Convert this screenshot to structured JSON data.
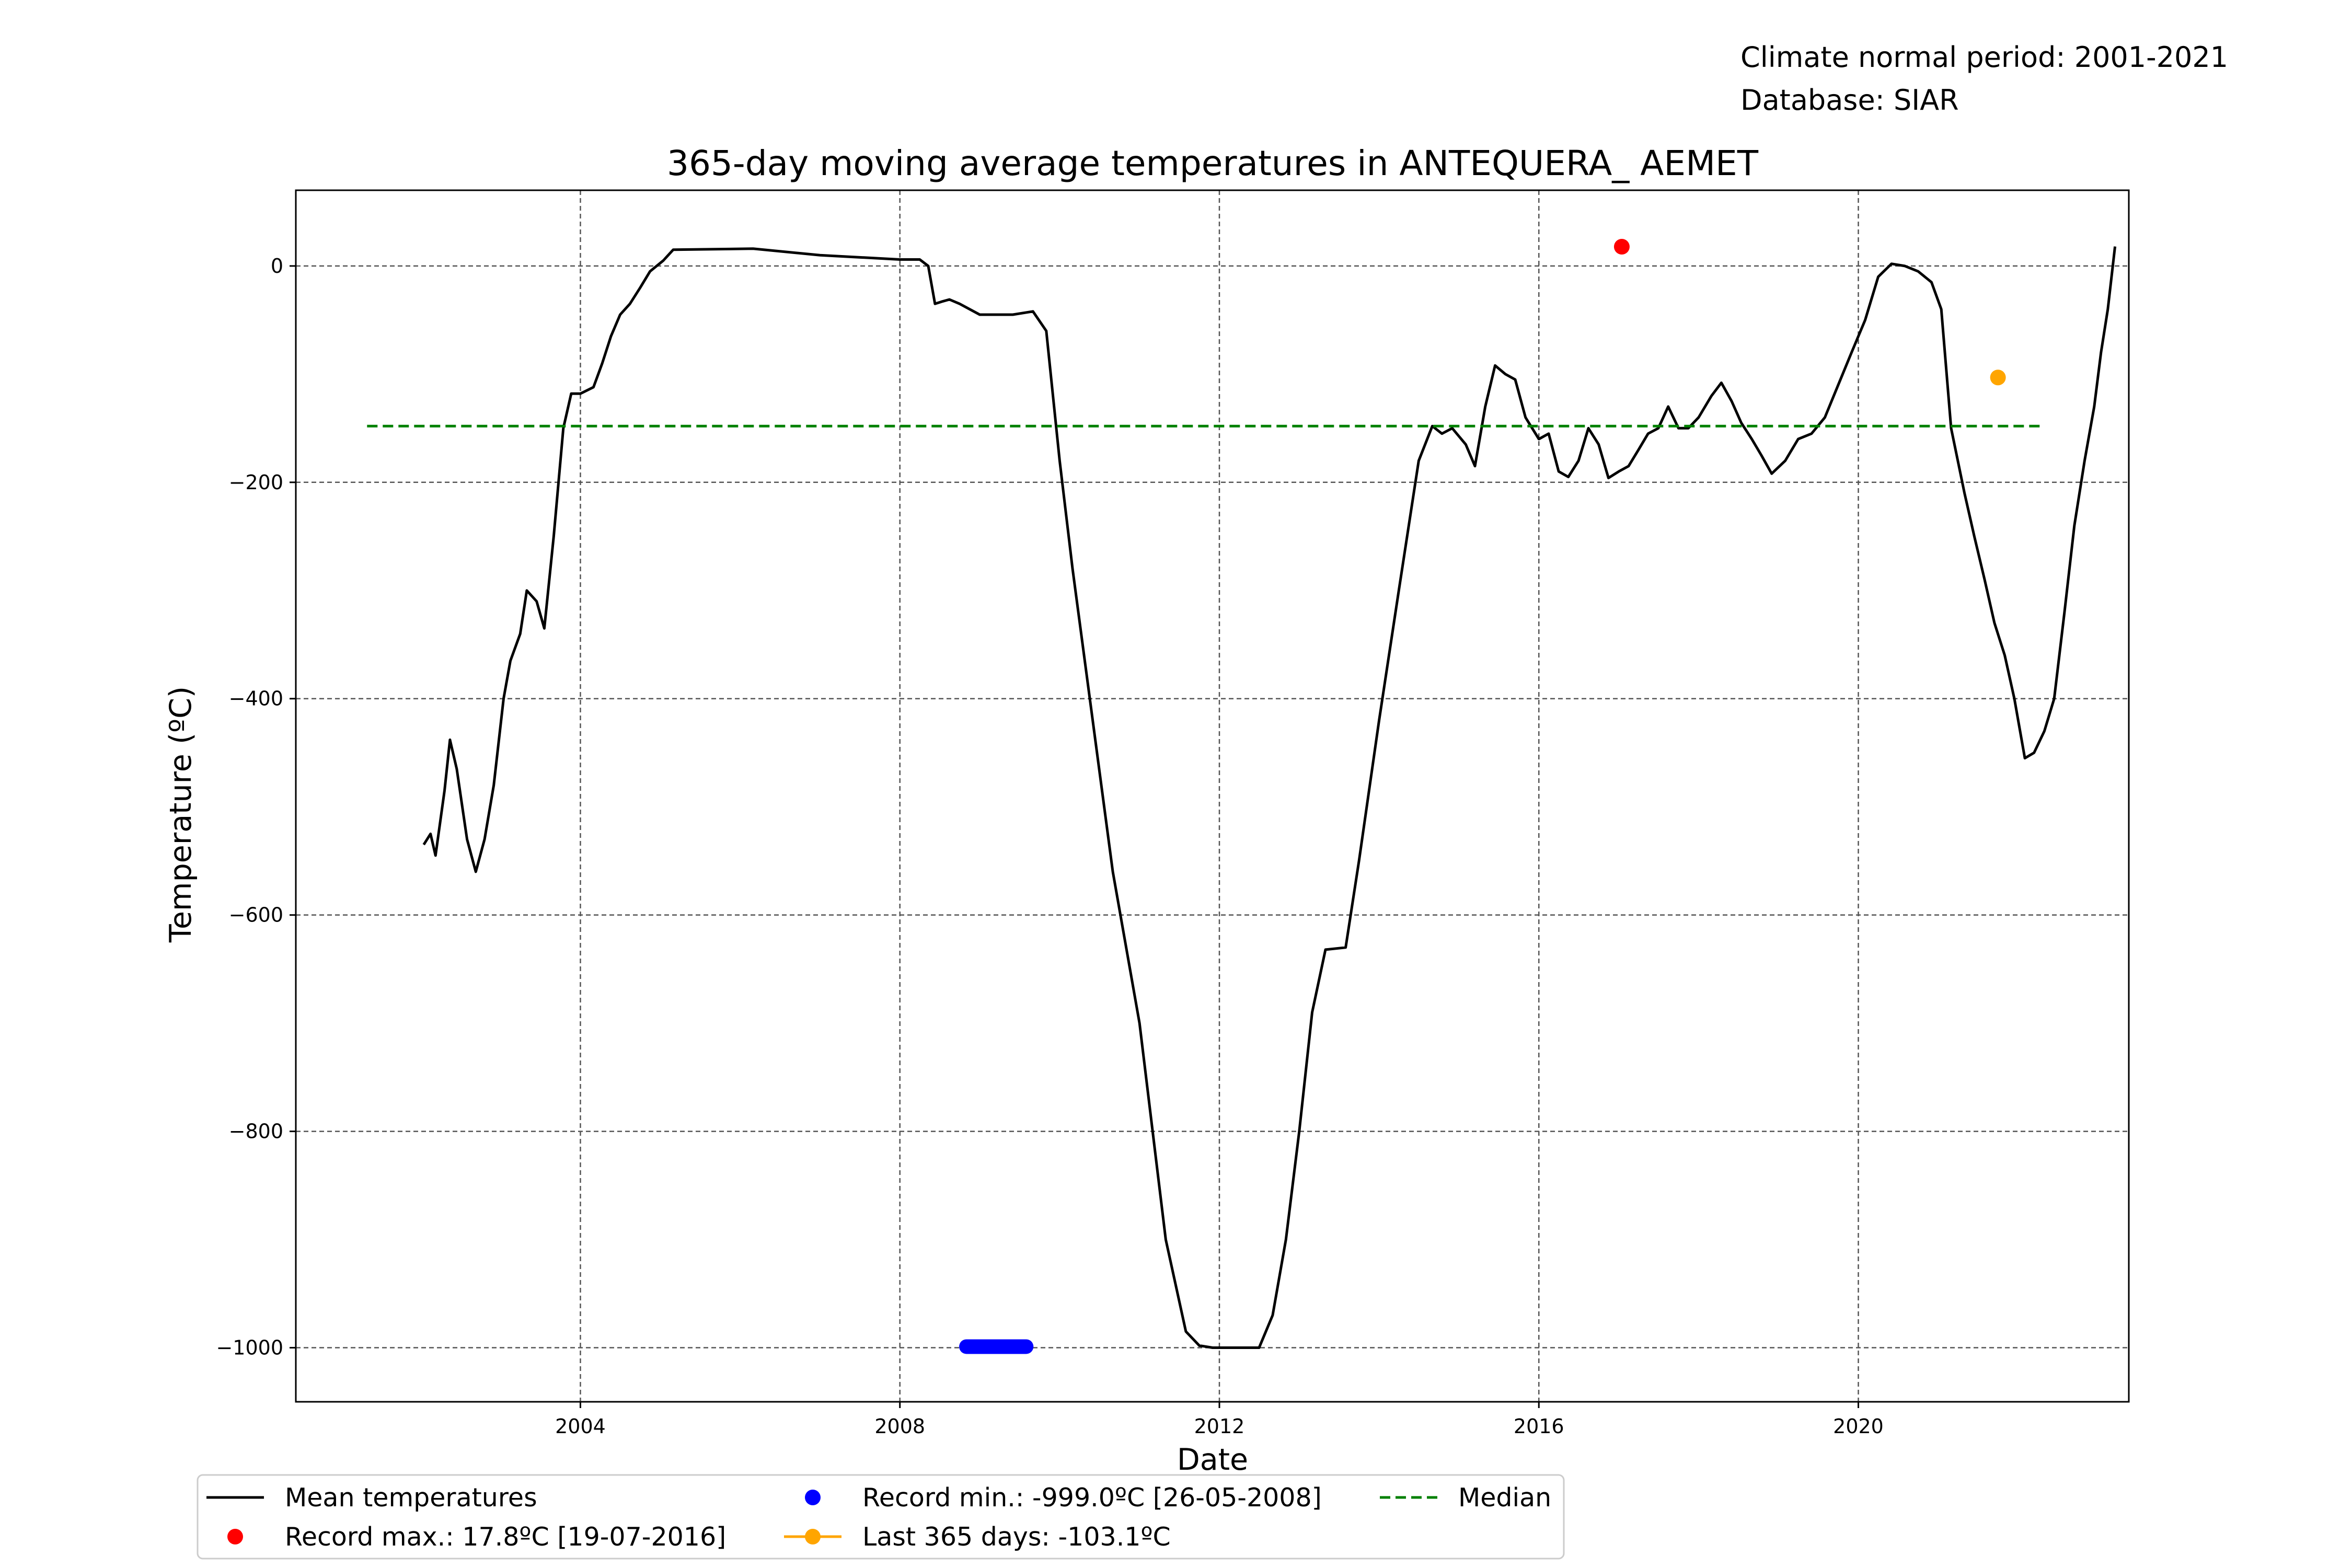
{
  "header_notes": {
    "period": "Climate normal period: 2001-2021",
    "database": "Database: SIAR"
  },
  "chart_data": {
    "type": "line",
    "title": "365-day moving average temperatures in ANTEQUERA_ AEMET",
    "xlabel": "Date",
    "ylabel": "Temperature (ºC)",
    "xlim": [
      "2000-06-09",
      "2023-05-22"
    ],
    "ylim": [
      -1050,
      70
    ],
    "x_ticks": [
      "2004",
      "2008",
      "2012",
      "2016",
      "2020"
    ],
    "y_ticks": [
      {
        "value": 0,
        "label": "0"
      },
      {
        "value": -200,
        "label": "−200"
      },
      {
        "value": -400,
        "label": "−400"
      },
      {
        "value": -600,
        "label": "−600"
      },
      {
        "value": -800,
        "label": "−800"
      },
      {
        "value": -1000,
        "label": "−1000"
      }
    ],
    "grid": true,
    "series": [
      {
        "name": "Mean temperatures",
        "color": "#000000",
        "style": "solid",
        "points": [
          [
            "2002-01-15",
            -535
          ],
          [
            "2002-02-15",
            -525
          ],
          [
            "2002-03-10",
            -545
          ],
          [
            "2002-04-20",
            -485
          ],
          [
            "2002-05-15",
            -438
          ],
          [
            "2002-06-15",
            -465
          ],
          [
            "2002-08-01",
            -530
          ],
          [
            "2002-09-10",
            -560
          ],
          [
            "2002-10-20",
            -530
          ],
          [
            "2002-12-01",
            -480
          ],
          [
            "2003-01-15",
            -400
          ],
          [
            "2003-02-15",
            -365
          ],
          [
            "2003-04-01",
            -340
          ],
          [
            "2003-05-01",
            -300
          ],
          [
            "2003-06-15",
            -310
          ],
          [
            "2003-07-20",
            -335
          ],
          [
            "2003-09-01",
            -250
          ],
          [
            "2003-10-15",
            -150
          ],
          [
            "2003-11-20",
            -118
          ],
          [
            "2004-01-01",
            -118
          ],
          [
            "2004-03-01",
            -112
          ],
          [
            "2004-04-10",
            -90
          ],
          [
            "2004-05-20",
            -65
          ],
          [
            "2004-07-01",
            -45
          ],
          [
            "2004-08-15",
            -35
          ],
          [
            "2004-10-01",
            -20
          ],
          [
            "2004-11-15",
            -5
          ],
          [
            "2005-01-15",
            5
          ],
          [
            "2005-03-01",
            15
          ],
          [
            "2006-03-01",
            16
          ],
          [
            "2007-01-01",
            10
          ],
          [
            "2008-01-01",
            6
          ],
          [
            "2008-04-01",
            6
          ],
          [
            "2008-05-10",
            0
          ],
          [
            "2008-06-10",
            -35
          ],
          [
            "2008-07-10",
            -33
          ],
          [
            "2008-08-15",
            -31
          ],
          [
            "2008-10-01",
            -35
          ],
          [
            "2009-01-01",
            -45
          ],
          [
            "2009-06-01",
            -45
          ],
          [
            "2009-09-01",
            -42
          ],
          [
            "2009-11-01",
            -60
          ],
          [
            "2010-01-01",
            -180
          ],
          [
            "2010-03-01",
            -280
          ],
          [
            "2010-06-01",
            -420
          ],
          [
            "2010-09-01",
            -560
          ],
          [
            "2011-01-01",
            -700
          ],
          [
            "2011-05-01",
            -900
          ],
          [
            "2011-08-01",
            -985
          ],
          [
            "2011-10-01",
            -998
          ],
          [
            "2011-12-01",
            -1000
          ],
          [
            "2012-04-01",
            -1000
          ],
          [
            "2012-07-01",
            -1000
          ],
          [
            "2012-09-01",
            -970
          ],
          [
            "2012-11-01",
            -900
          ],
          [
            "2013-01-01",
            -800
          ],
          [
            "2013-03-01",
            -690
          ],
          [
            "2013-05-01",
            -632
          ],
          [
            "2013-08-01",
            -630
          ],
          [
            "2013-10-01",
            -550
          ],
          [
            "2014-01-01",
            -420
          ],
          [
            "2014-04-01",
            -300
          ],
          [
            "2014-07-01",
            -180
          ],
          [
            "2014-09-01",
            -148
          ],
          [
            "2014-10-15",
            -155
          ],
          [
            "2014-12-01",
            -150
          ],
          [
            "2015-02-01",
            -165
          ],
          [
            "2015-03-15",
            -185
          ],
          [
            "2015-05-01",
            -130
          ],
          [
            "2015-06-15",
            -92
          ],
          [
            "2015-08-01",
            -100
          ],
          [
            "2015-09-15",
            -105
          ],
          [
            "2015-11-01",
            -140
          ],
          [
            "2016-01-01",
            -160
          ],
          [
            "2016-02-15",
            -155
          ],
          [
            "2016-04-01",
            -190
          ],
          [
            "2016-05-15",
            -195
          ],
          [
            "2016-07-01",
            -180
          ],
          [
            "2016-08-15",
            -150
          ],
          [
            "2016-10-01",
            -165
          ],
          [
            "2016-11-15",
            -196
          ],
          [
            "2017-01-01",
            -190
          ],
          [
            "2017-02-15",
            -185
          ],
          [
            "2017-04-01",
            -170
          ],
          [
            "2017-05-15",
            -155
          ],
          [
            "2017-07-01",
            -150
          ],
          [
            "2017-08-15",
            -130
          ],
          [
            "2017-10-01",
            -150
          ],
          [
            "2017-11-15",
            -150
          ],
          [
            "2018-01-01",
            -140
          ],
          [
            "2018-03-01",
            -120
          ],
          [
            "2018-04-15",
            -108
          ],
          [
            "2018-06-01",
            -125
          ],
          [
            "2018-07-15",
            -145
          ],
          [
            "2018-09-01",
            -160
          ],
          [
            "2018-10-15",
            -175
          ],
          [
            "2018-12-01",
            -192
          ],
          [
            "2019-02-01",
            -180
          ],
          [
            "2019-04-01",
            -160
          ],
          [
            "2019-06-01",
            -155
          ],
          [
            "2019-08-01",
            -140
          ],
          [
            "2019-10-01",
            -110
          ],
          [
            "2019-12-01",
            -80
          ],
          [
            "2020-02-01",
            -50
          ],
          [
            "2020-04-01",
            -10
          ],
          [
            "2020-06-01",
            2
          ],
          [
            "2020-08-01",
            0
          ],
          [
            "2020-10-01",
            -5
          ],
          [
            "2020-12-01",
            -15
          ],
          [
            "2021-01-15",
            -40
          ],
          [
            "2021-03-01",
            -150
          ],
          [
            "2021-05-01",
            -210
          ],
          [
            "2021-06-15",
            -250
          ],
          [
            "2021-08-01",
            -290
          ],
          [
            "2021-09-15",
            -330
          ],
          [
            "2021-11-01",
            -360
          ],
          [
            "2021-12-15",
            -400
          ],
          [
            "2022-02-01",
            -455
          ],
          [
            "2022-03-15",
            -450
          ],
          [
            "2022-05-01",
            -430
          ],
          [
            "2022-06-15",
            -400
          ],
          [
            "2022-08-01",
            -320
          ],
          [
            "2022-09-15",
            -240
          ],
          [
            "2022-11-01",
            -180
          ],
          [
            "2022-12-15",
            -130
          ],
          [
            "2023-01-15",
            -80
          ],
          [
            "2023-02-15",
            -40
          ],
          [
            "2023-03-20",
            18
          ]
        ]
      },
      {
        "name": "Median",
        "color": "#008000",
        "style": "dashed",
        "points": [
          [
            "2001-05-01",
            -148
          ],
          [
            "2022-05-01",
            -148
          ]
        ]
      }
    ],
    "record_max": {
      "label": "Record max.: 17.8ºC [19-07-2016]",
      "date": "2017-01-15",
      "value": 17.8,
      "color": "#ff0000"
    },
    "record_min": {
      "label": "Record min.: -999.0ºC [26-05-2008]",
      "date_start": "2008-11-01",
      "date_end": "2009-08-01",
      "value": -999.0,
      "color": "#0000ff"
    },
    "last_365": {
      "label": "Last 365 days: -103.1ºC",
      "date": "2021-10-01",
      "value": -103.1,
      "color": "#ffa500"
    },
    "legend": {
      "placement": "bottom-center",
      "entries": [
        {
          "label": "Mean temperatures",
          "kind": "line",
          "color": "#000000"
        },
        {
          "label": "Record max.: 17.8ºC [19-07-2016]",
          "kind": "dot",
          "color": "#ff0000"
        },
        {
          "label": "Record min.: -999.0ºC [26-05-2008]",
          "kind": "dot",
          "color": "#0000ff"
        },
        {
          "label": "Last 365 days: -103.1ºC",
          "kind": "line-dot",
          "color": "#ffa500"
        },
        {
          "label": "Median",
          "kind": "dashed",
          "color": "#008000"
        }
      ]
    }
  }
}
